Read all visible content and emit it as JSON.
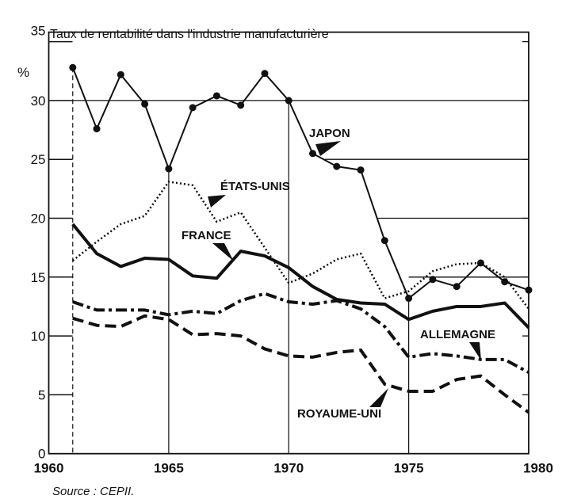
{
  "chart_data": {
    "type": "line",
    "title": "Taux de rentabilité dans l'industrie manufacturière",
    "ylabel": "%",
    "xlabel": "",
    "source": "Source : CEPII.",
    "xlim": [
      1960,
      1980
    ],
    "ylim": [
      0,
      35
    ],
    "x_ticks": [
      1960,
      1965,
      1970,
      1975,
      1980
    ],
    "y_ticks": [
      0,
      5,
      10,
      15,
      20,
      25,
      30,
      35
    ],
    "x": [
      1961,
      1962,
      1963,
      1964,
      1965,
      1966,
      1967,
      1968,
      1969,
      1970,
      1971,
      1972,
      1973,
      1974,
      1975,
      1976,
      1977,
      1978,
      1979,
      1980
    ],
    "series": [
      {
        "name": "JAPON",
        "style": "solid-markers",
        "values": [
          32.8,
          27.6,
          32.2,
          29.7,
          24.2,
          29.4,
          30.4,
          29.6,
          32.3,
          30.0,
          25.5,
          24.4,
          24.1,
          18.1,
          13.2,
          14.8,
          14.2,
          16.2,
          14.6,
          13.9
        ]
      },
      {
        "name": "ÉTATS-UNIS",
        "style": "dotted",
        "values": [
          16.4,
          18.0,
          19.5,
          20.2,
          23.1,
          22.8,
          19.7,
          20.5,
          17.5,
          14.5,
          15.3,
          16.5,
          17.0,
          13.2,
          13.8,
          15.5,
          16.1,
          16.2,
          15.0,
          12.3
        ]
      },
      {
        "name": "FRANCE",
        "style": "thick-solid",
        "values": [
          19.5,
          17.0,
          15.9,
          16.6,
          16.5,
          15.1,
          14.9,
          17.2,
          16.8,
          15.8,
          14.2,
          13.1,
          12.8,
          12.7,
          11.4,
          12.1,
          12.5,
          12.5,
          12.8,
          10.7
        ]
      },
      {
        "name": "ALLEMAGNE",
        "style": "dash-dot",
        "values": [
          12.9,
          12.2,
          12.2,
          12.2,
          11.8,
          12.1,
          11.9,
          13.0,
          13.6,
          12.9,
          12.7,
          13.0,
          12.3,
          10.8,
          8.2,
          8.5,
          8.3,
          8.0,
          8.0,
          6.9
        ]
      },
      {
        "name": "ROYAUME-UNI",
        "style": "dashed",
        "values": [
          11.5,
          10.9,
          10.8,
          11.7,
          11.4,
          10.1,
          10.2,
          10.0,
          8.9,
          8.3,
          8.2,
          8.6,
          8.8,
          5.9,
          5.3,
          5.3,
          6.3,
          6.6,
          5.0,
          3.5
        ]
      }
    ],
    "grid": "partial",
    "legend": "inline labels"
  }
}
